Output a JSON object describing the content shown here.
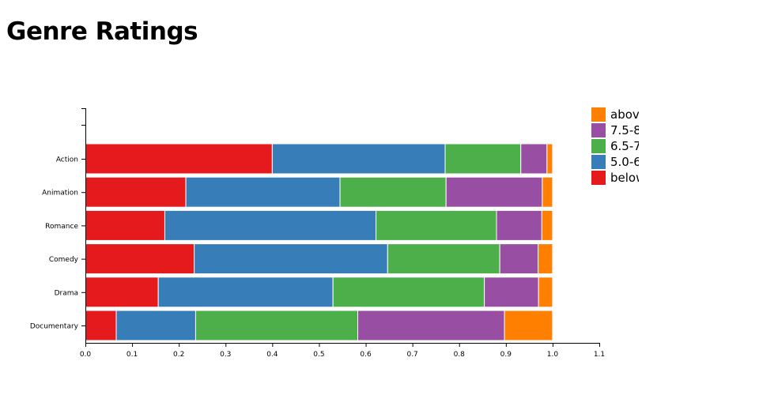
{
  "chart_data": {
    "type": "bar",
    "orientation": "horizontal",
    "stacked": true,
    "title": "Genre Ratings",
    "xlabel": "",
    "ylabel": "",
    "xlim": [
      0,
      1.1
    ],
    "x_ticks": [
      "0.0",
      "0.1",
      "0.2",
      "0.3",
      "0.4",
      "0.5",
      "0.6",
      "0.7",
      "0.8",
      "0.9",
      "1.0",
      "1.1"
    ],
    "categories": [
      "Action",
      "Animation",
      "Romance",
      "Comedy",
      "Drama",
      "Documentary"
    ],
    "series": [
      {
        "name": "below",
        "color": "#e41a1c",
        "values": [
          0.4,
          0.215,
          0.17,
          0.233,
          0.156,
          0.066
        ]
      },
      {
        "name": "5.0-6",
        "color": "#377eb8",
        "values": [
          0.37,
          0.33,
          0.452,
          0.414,
          0.374,
          0.17
        ]
      },
      {
        "name": "6.5-7",
        "color": "#4daf4a",
        "values": [
          0.162,
          0.227,
          0.258,
          0.24,
          0.324,
          0.347
        ]
      },
      {
        "name": "7.5-8",
        "color": "#984ea3",
        "values": [
          0.056,
          0.206,
          0.097,
          0.082,
          0.116,
          0.314
        ]
      },
      {
        "name": "abov",
        "color": "#ff7f00",
        "values": [
          0.012,
          0.022,
          0.023,
          0.031,
          0.03,
          0.103
        ]
      }
    ],
    "legend": {
      "placement": "top-right",
      "order": [
        "abov",
        "7.5-8",
        "6.5-7",
        "5.0-6",
        "below"
      ]
    },
    "grid": false
  }
}
